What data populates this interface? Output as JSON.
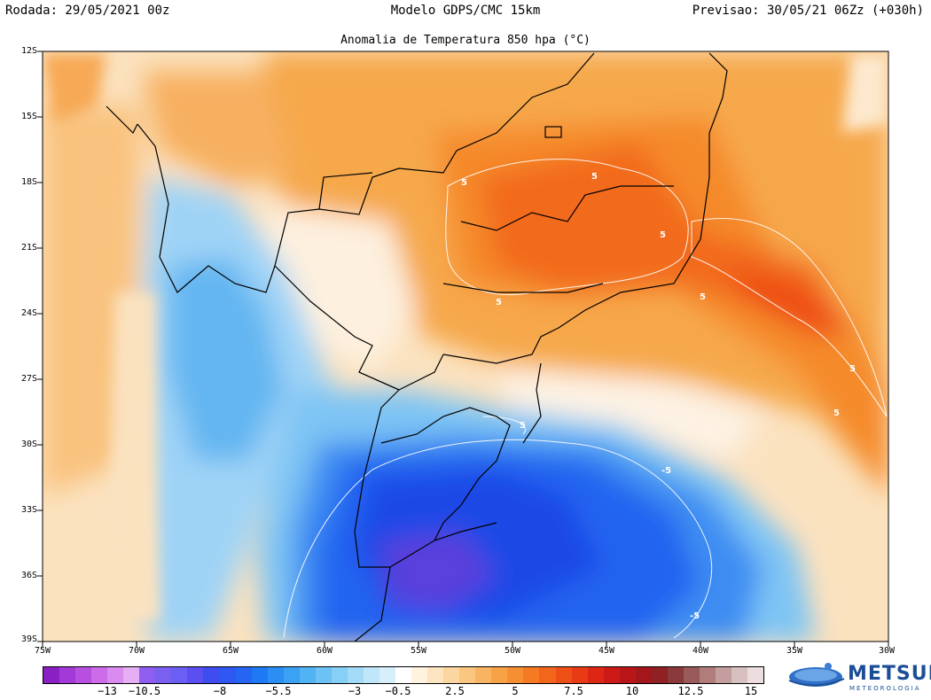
{
  "header": {
    "run": "Rodada: 29/05/2021 00z",
    "model": "Modelo GDPS/CMC 15km",
    "forecast": "Previsao: 30/05/21 06Zz (+030h)"
  },
  "map": {
    "title": "Anomalia de Temperatura 850 hpa (°C)",
    "lat_labels": [
      "12S",
      "15S",
      "18S",
      "21S",
      "24S",
      "27S",
      "30S",
      "33S",
      "36S",
      "39S"
    ],
    "lon_labels": [
      "75W",
      "70W",
      "65W",
      "60W",
      "55W",
      "50W",
      "45W",
      "40W",
      "35W",
      "30W"
    ],
    "contour_labels": [
      "5",
      "5",
      "5",
      "5",
      "5",
      "5",
      "5",
      "5",
      "-5",
      "-5"
    ],
    "colors": {
      "warm_strong": "#f25a12",
      "warm": "#f59a3a",
      "warm_light": "#fbd7a3",
      "cool_light": "#cfe8fb",
      "cool": "#5fb4f2",
      "cold": "#1a5ef0",
      "cold_strong": "#5a3fdc"
    }
  },
  "colorbar": {
    "labels": [
      "−13",
      "−10.5",
      "−8",
      "−5.5",
      "−3",
      "−0.5",
      "2.5",
      "5",
      "7.5",
      "10",
      "12.5",
      "15"
    ],
    "colors": [
      "#8a1fc4",
      "#a13ad6",
      "#b84fe0",
      "#cc6ce8",
      "#d98cee",
      "#e6aef3",
      "#8d5ef0",
      "#7a60f0",
      "#6a5ef5",
      "#5a50f2",
      "#3f4cf0",
      "#2f57f2",
      "#2466f2",
      "#1f79f4",
      "#2a8ef3",
      "#3ba1f3",
      "#52b3f4",
      "#6cc2f5",
      "#86cff6",
      "#a3dbf7",
      "#bfe6f9",
      "#d6effb",
      "#ffffff",
      "#fff3e0",
      "#fde5c2",
      "#fcd6a0",
      "#fbc680",
      "#f9b462",
      "#f8a248",
      "#f68f34",
      "#f57a22",
      "#f2651a",
      "#ee4f16",
      "#e83a14",
      "#de2614",
      "#cc1a16",
      "#b81618",
      "#a3161c",
      "#8f2024",
      "#8a3a3a",
      "#9a5a5a",
      "#b07c7c",
      "#c49e9e",
      "#d8c0c0",
      "#ecdede"
    ]
  },
  "logo": {
    "name": "METSUL",
    "subtitle": "METEOROLOGIA"
  }
}
